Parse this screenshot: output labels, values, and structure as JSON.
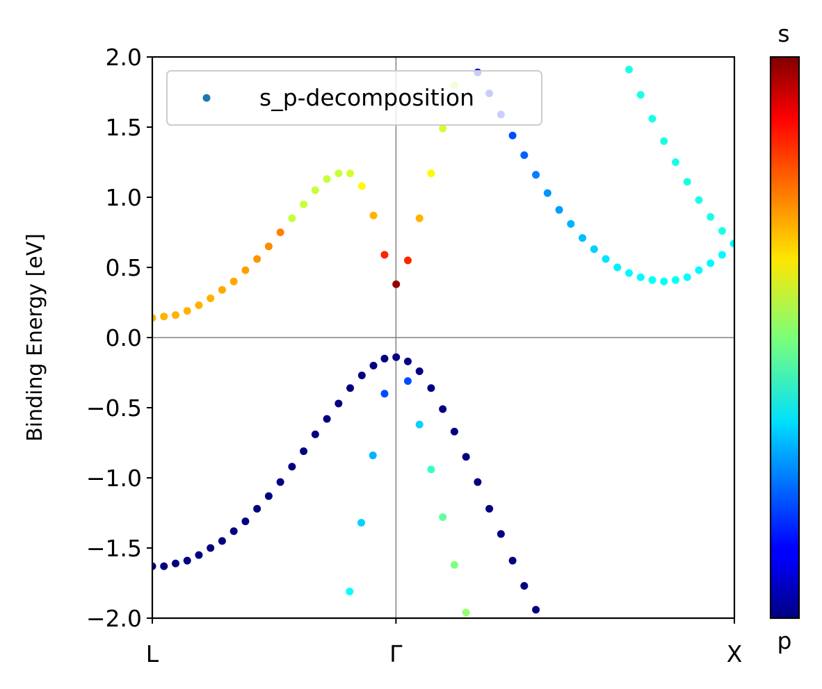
{
  "chart_data": {
    "type": "scatter",
    "title": "",
    "xlabel": "",
    "ylabel": "Binding Energy [eV]",
    "ylim": [
      -2.0,
      2.0
    ],
    "xlim": [
      0,
      1
    ],
    "xtick_positions": [
      0,
      0.4186,
      1
    ],
    "xtick_labels": [
      "L",
      "Γ",
      "X"
    ],
    "yticks": [
      2.0,
      1.5,
      1.0,
      0.5,
      0.0,
      -0.5,
      -1.0,
      -1.5,
      -2.0
    ],
    "ytick_labels": [
      "2.0",
      "1.5",
      "1.0",
      "0.5",
      "0.0",
      "−0.5",
      "−1.0",
      "−1.5",
      "−2.0"
    ],
    "grid": false,
    "reference_lines": {
      "horizontal_y": 0.0,
      "vertical_x": 0.4186
    },
    "legend": {
      "position": "top-left",
      "entries": [
        {
          "label": "s_p-decomposition",
          "color": "#1f77b4"
        }
      ]
    },
    "colorbar": {
      "colormap": "jet",
      "top_label": "s",
      "bottom_label": "p",
      "range": [
        0,
        1
      ]
    },
    "series": [
      {
        "points": [
          [
            0.0,
            0.14,
            0.7
          ],
          [
            0.02,
            0.15,
            0.7
          ],
          [
            0.04,
            0.16,
            0.7
          ],
          [
            0.06,
            0.19,
            0.7
          ],
          [
            0.08,
            0.23,
            0.7
          ],
          [
            0.1,
            0.28,
            0.7
          ],
          [
            0.12,
            0.34,
            0.71
          ],
          [
            0.14,
            0.4,
            0.71
          ],
          [
            0.16,
            0.48,
            0.72
          ],
          [
            0.18,
            0.56,
            0.73
          ],
          [
            0.2,
            0.65,
            0.74
          ],
          [
            0.22,
            0.75,
            0.75
          ],
          [
            0.24,
            0.85,
            0.57
          ],
          [
            0.26,
            0.95,
            0.57
          ],
          [
            0.28,
            1.05,
            0.57
          ],
          [
            0.3,
            1.13,
            0.57
          ],
          [
            0.32,
            1.17,
            0.57
          ],
          [
            0.34,
            1.17,
            0.58
          ],
          [
            0.36,
            1.08,
            0.63
          ],
          [
            0.38,
            0.87,
            0.7
          ],
          [
            0.399,
            0.59,
            0.84
          ],
          [
            0.419,
            0.38,
            0.98
          ],
          [
            0.439,
            0.55,
            0.84
          ],
          [
            0.459,
            0.85,
            0.7
          ],
          [
            0.479,
            1.17,
            0.63
          ],
          [
            0.499,
            1.49,
            0.58
          ],
          [
            0.519,
            1.8,
            0.55
          ],
          [
            0.0,
            -1.63,
            0.0
          ],
          [
            0.02,
            -1.63,
            0.0
          ],
          [
            0.04,
            -1.61,
            0.0
          ],
          [
            0.06,
            -1.59,
            0.0
          ],
          [
            0.08,
            -1.55,
            0.0
          ],
          [
            0.1,
            -1.5,
            0.0
          ],
          [
            0.12,
            -1.45,
            0.0
          ],
          [
            0.14,
            -1.38,
            0.0
          ],
          [
            0.16,
            -1.31,
            0.0
          ],
          [
            0.18,
            -1.22,
            0.0
          ],
          [
            0.2,
            -1.13,
            0.0
          ],
          [
            0.22,
            -1.03,
            0.0
          ],
          [
            0.24,
            -0.92,
            0.0
          ],
          [
            0.26,
            -0.81,
            0.0
          ],
          [
            0.28,
            -0.69,
            0.0
          ],
          [
            0.3,
            -0.58,
            0.0
          ],
          [
            0.32,
            -0.47,
            0.0
          ],
          [
            0.34,
            -0.36,
            0.0
          ],
          [
            0.36,
            -0.27,
            0.0
          ],
          [
            0.38,
            -0.2,
            0.0
          ],
          [
            0.399,
            -0.15,
            0.0
          ],
          [
            0.419,
            -0.14,
            0.0
          ],
          [
            0.439,
            -0.17,
            0.0
          ],
          [
            0.459,
            -0.24,
            0.0
          ],
          [
            0.479,
            -0.36,
            0.0
          ],
          [
            0.499,
            -0.51,
            0.0
          ],
          [
            0.519,
            -0.67,
            0.0
          ],
          [
            0.539,
            -0.85,
            0.0
          ],
          [
            0.559,
            -1.03,
            0.0
          ],
          [
            0.579,
            -1.22,
            0.0
          ],
          [
            0.599,
            -1.4,
            0.0
          ],
          [
            0.619,
            -1.59,
            0.0
          ],
          [
            0.639,
            -1.77,
            0.0
          ],
          [
            0.659,
            -1.94,
            0.0
          ],
          [
            0.399,
            -0.4,
            0.2
          ],
          [
            0.379,
            -0.84,
            0.3
          ],
          [
            0.359,
            -1.32,
            0.33
          ],
          [
            0.339,
            -1.81,
            0.38
          ],
          [
            0.439,
            -0.31,
            0.2
          ],
          [
            0.459,
            -0.62,
            0.33
          ],
          [
            0.479,
            -0.94,
            0.43
          ],
          [
            0.499,
            -1.28,
            0.47
          ],
          [
            0.519,
            -1.62,
            0.5
          ],
          [
            0.539,
            -1.96,
            0.52
          ],
          [
            0.559,
            1.89,
            0.08
          ],
          [
            0.579,
            1.74,
            0.1
          ],
          [
            0.599,
            1.59,
            0.13
          ],
          [
            0.619,
            1.44,
            0.2
          ],
          [
            0.639,
            1.3,
            0.22
          ],
          [
            0.659,
            1.16,
            0.25
          ],
          [
            0.679,
            1.03,
            0.27
          ],
          [
            0.699,
            0.91,
            0.28
          ],
          [
            0.719,
            0.81,
            0.3
          ],
          [
            0.739,
            0.71,
            0.31
          ],
          [
            0.759,
            0.63,
            0.33
          ],
          [
            0.779,
            0.56,
            0.35
          ],
          [
            0.799,
            0.5,
            0.36
          ],
          [
            0.819,
            0.46,
            0.37
          ],
          [
            0.839,
            0.43,
            0.37
          ],
          [
            0.859,
            0.41,
            0.38
          ],
          [
            0.879,
            0.4,
            0.38
          ],
          [
            0.899,
            0.41,
            0.38
          ],
          [
            0.919,
            0.43,
            0.38
          ],
          [
            0.939,
            0.48,
            0.37
          ],
          [
            0.959,
            0.53,
            0.37
          ],
          [
            0.979,
            0.59,
            0.37
          ],
          [
            0.999,
            0.67,
            0.37
          ],
          [
            0.819,
            1.91,
            0.4
          ],
          [
            0.839,
            1.73,
            0.4
          ],
          [
            0.859,
            1.56,
            0.4
          ],
          [
            0.879,
            1.4,
            0.4
          ],
          [
            0.899,
            1.25,
            0.4
          ],
          [
            0.919,
            1.11,
            0.4
          ],
          [
            0.939,
            0.98,
            0.4
          ],
          [
            0.959,
            0.86,
            0.4
          ],
          [
            0.979,
            0.76,
            0.4
          ]
        ]
      }
    ]
  }
}
